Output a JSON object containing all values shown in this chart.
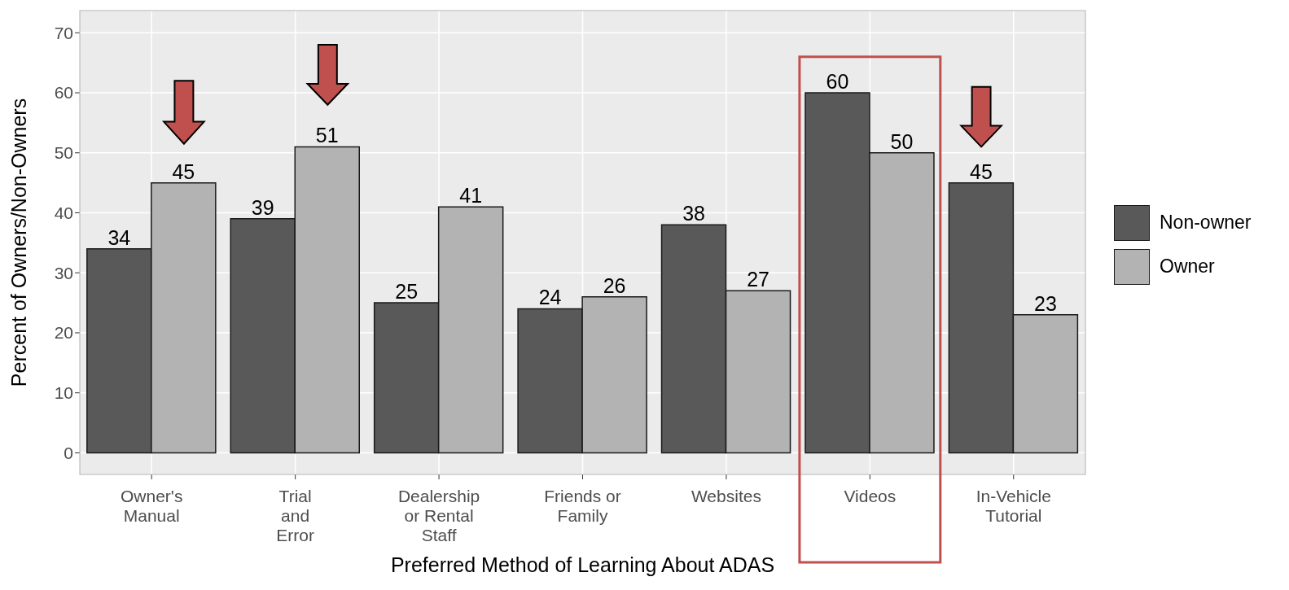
{
  "chart_data": {
    "type": "bar",
    "xlabel": "Preferred Method of Learning About ADAS",
    "ylabel": "Percent of Owners/Non-Owners",
    "categories": [
      "Owner's\nManual",
      "Trial\nand\nError",
      "Dealership\nor Rental\nStaff",
      "Friends or\nFamily",
      "Websites",
      "Videos",
      "In-Vehicle\nTutorial"
    ],
    "series": [
      {
        "name": "Non-owner",
        "color": "#595959",
        "values": [
          34,
          39,
          25,
          24,
          38,
          60,
          45
        ]
      },
      {
        "name": "Owner",
        "color": "#b3b3b3",
        "values": [
          45,
          51,
          41,
          26,
          27,
          50,
          23
        ]
      }
    ],
    "ylim": [
      -3.6,
      73.7
    ],
    "yticks": [
      0,
      10,
      20,
      30,
      40,
      50,
      60,
      70
    ],
    "grid": true,
    "data_labels": true,
    "legend": "right"
  }
}
